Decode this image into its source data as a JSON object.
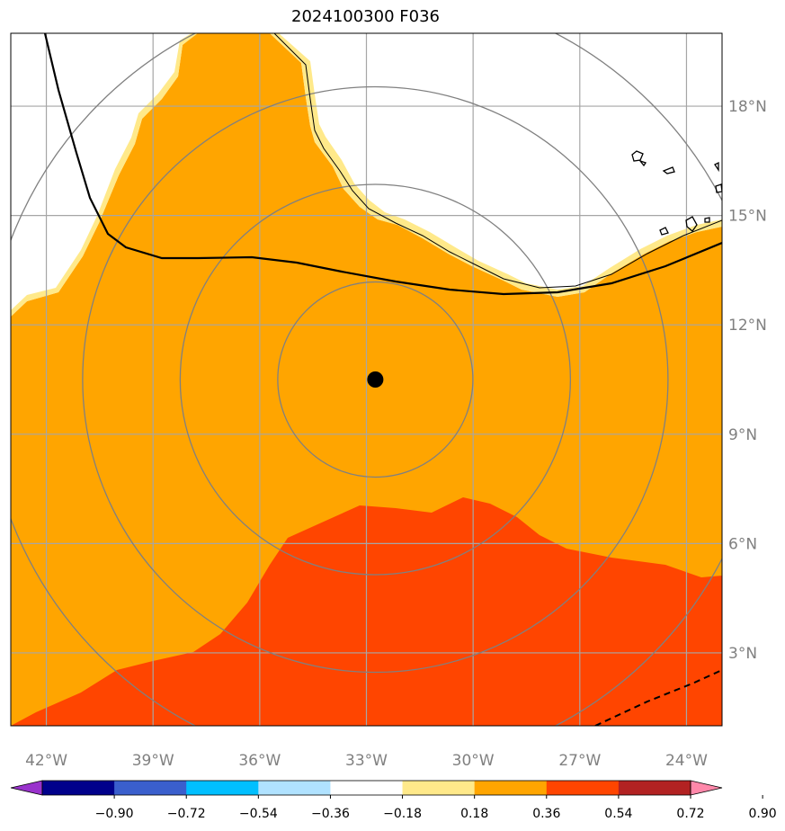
{
  "title": "2024100300 F036",
  "map": {
    "lon_range": [
      -43,
      -23
    ],
    "lat_range": [
      1,
      20
    ],
    "lon_ticks": [
      {
        "value": -42,
        "label": "42°W"
      },
      {
        "value": -39,
        "label": "39°W"
      },
      {
        "value": -36,
        "label": "36°W"
      },
      {
        "value": -33,
        "label": "33°W"
      },
      {
        "value": -30,
        "label": "30°W"
      },
      {
        "value": -27,
        "label": "27°W"
      },
      {
        "value": -24,
        "label": "24°W"
      }
    ],
    "lat_ticks": [
      {
        "value": 3,
        "label": "3°N"
      },
      {
        "value": 6,
        "label": "6°N"
      },
      {
        "value": 9,
        "label": "9°N"
      },
      {
        "value": 12,
        "label": "12°N"
      },
      {
        "value": 15,
        "label": "15°N"
      },
      {
        "value": 18,
        "label": "18°N"
      }
    ],
    "grid": true,
    "center_marker": {
      "lon": -32.75,
      "lat": 10.5
    },
    "range_rings_count": 4,
    "colors": {
      "orange": "#ffa500",
      "red_orange": "#ff4500",
      "light_yellow": "#ffe98a",
      "grid": "#a6a6a6",
      "ring": "#808080"
    }
  },
  "colorbar": {
    "colors": [
      "#9932cc",
      "#00008b",
      "#3a5fcd",
      "#00bfff",
      "#b0e2ff",
      "#ffffff",
      "#ffe98a",
      "#ffa500",
      "#ff4500",
      "#b22222",
      "#ff88aa"
    ],
    "labels": [
      "−0.90",
      "−0.72",
      "−0.54",
      "−0.36",
      "−0.18",
      "0.18",
      "0.36",
      "0.54",
      "0.72",
      "0.90"
    ]
  }
}
